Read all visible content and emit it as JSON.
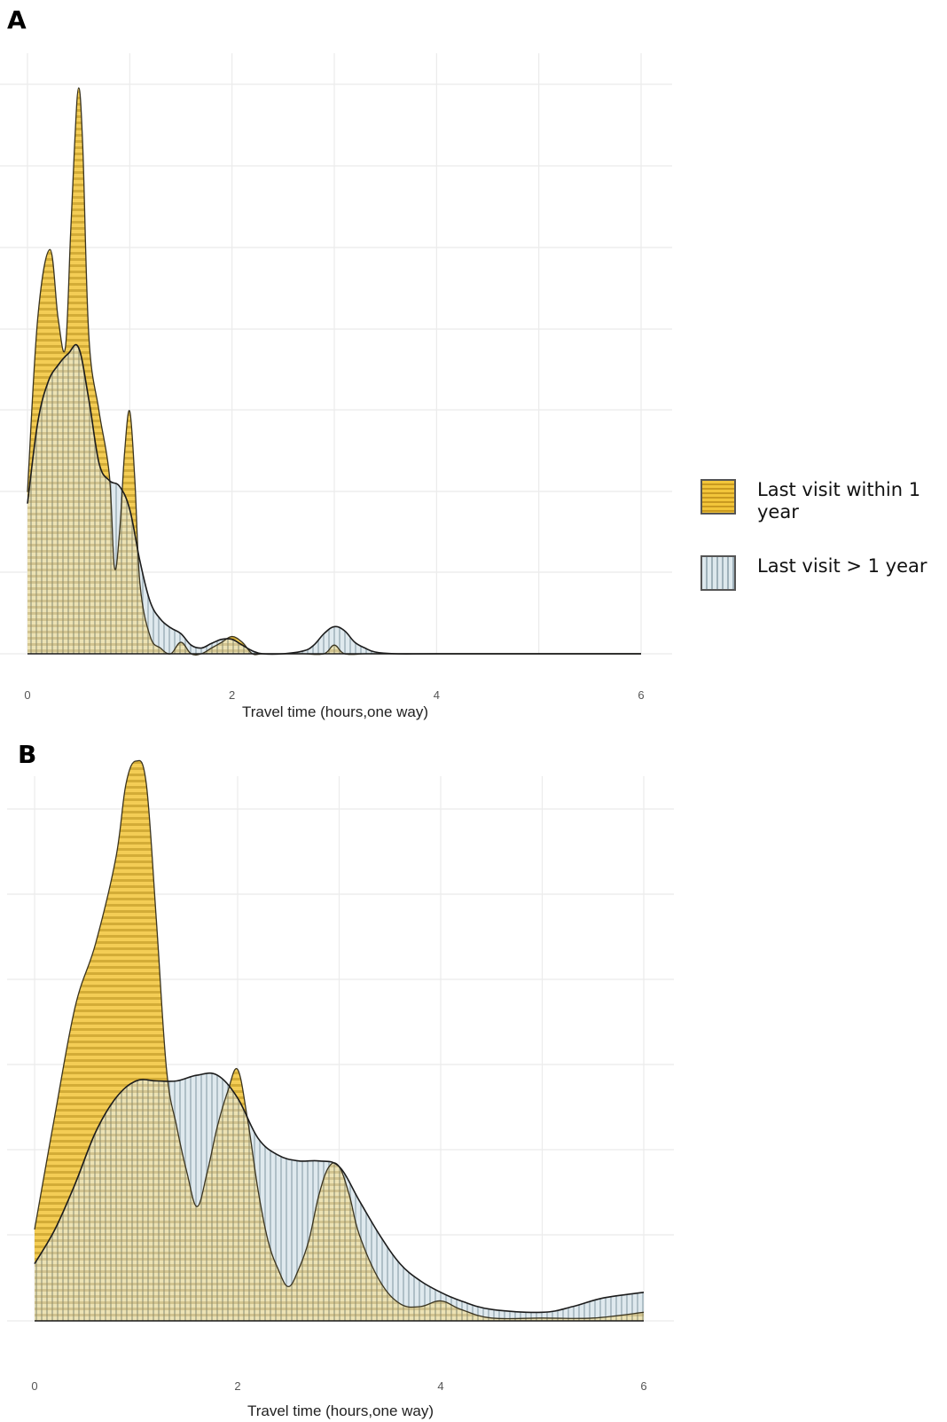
{
  "panels": [
    {
      "id": "A",
      "letter": "A"
    },
    {
      "id": "B",
      "letter": "B"
    }
  ],
  "legend": {
    "items": [
      {
        "label": "Last visit within 1 year",
        "color": "#f2c53a",
        "pattern": "horizontal-stripes"
      },
      {
        "label": "Last visit > 1 year",
        "color": "#dde8ed",
        "pattern": "vertical-stripes"
      }
    ]
  },
  "chart_data": [
    {
      "type": "area",
      "panel": "A",
      "xlabel": "Travel time (hours,one way)",
      "ylabel": "",
      "xlim": [
        0,
        6
      ],
      "ylim": [
        0,
        1
      ],
      "xticks": [
        "0",
        "2",
        "4",
        "6"
      ],
      "grid": true,
      "legend_position": "right",
      "series": [
        {
          "name": "Last visit within 1 year",
          "color": "#f2c53a",
          "x": [
            0,
            0.1,
            0.22,
            0.3,
            0.37,
            0.42,
            0.46,
            0.5,
            0.54,
            0.6,
            0.7,
            0.8,
            0.85,
            0.9,
            0.95,
            1.0,
            1.05,
            1.1,
            1.2,
            1.3,
            1.4,
            1.5,
            1.6,
            1.7,
            1.8,
            1.9,
            2.0,
            2.1,
            2.2,
            2.3,
            2.5,
            2.7,
            2.9,
            3.0,
            3.1,
            3.3,
            3.5,
            4.0,
            5.0,
            6.0
          ],
          "y": [
            0.28,
            0.58,
            0.7,
            0.58,
            0.53,
            0.72,
            0.88,
            0.98,
            0.88,
            0.55,
            0.42,
            0.31,
            0.15,
            0.21,
            0.35,
            0.42,
            0.3,
            0.12,
            0.03,
            0.01,
            0.0,
            0.02,
            0.0,
            0.0,
            0.01,
            0.02,
            0.03,
            0.02,
            0.0,
            0.0,
            0.0,
            0.0,
            0.0,
            0.015,
            0.0,
            0.0,
            0.0,
            0.0,
            0.0,
            0.0
          ]
        },
        {
          "name": "Last visit > 1 year",
          "color": "#dde8ed",
          "x": [
            0,
            0.1,
            0.2,
            0.3,
            0.4,
            0.5,
            0.6,
            0.7,
            0.8,
            0.9,
            1.0,
            1.1,
            1.2,
            1.3,
            1.4,
            1.5,
            1.6,
            1.7,
            1.8,
            1.9,
            2.0,
            2.1,
            2.2,
            2.3,
            2.5,
            2.7,
            2.8,
            2.9,
            3.0,
            3.1,
            3.2,
            3.3,
            3.4,
            3.6,
            4.0,
            5.0,
            6.0
          ],
          "y": [
            0.26,
            0.4,
            0.47,
            0.5,
            0.52,
            0.53,
            0.44,
            0.33,
            0.3,
            0.29,
            0.25,
            0.16,
            0.09,
            0.06,
            0.045,
            0.035,
            0.015,
            0.01,
            0.018,
            0.025,
            0.025,
            0.015,
            0.005,
            0.0,
            0.0,
            0.005,
            0.015,
            0.035,
            0.047,
            0.04,
            0.02,
            0.01,
            0.003,
            0.0,
            0.0,
            0.0,
            0.0
          ]
        }
      ]
    },
    {
      "type": "area",
      "panel": "B",
      "xlabel": "Travel time (hours,one way)",
      "ylabel": "",
      "xlim": [
        0,
        6
      ],
      "ylim": [
        0,
        1
      ],
      "xticks": [
        "0",
        "2",
        "4",
        "6"
      ],
      "grid": true,
      "series": [
        {
          "name": "Last visit within 1 year",
          "color": "#f2c53a",
          "x": [
            0,
            0.2,
            0.4,
            0.6,
            0.8,
            0.9,
            1.0,
            1.1,
            1.2,
            1.3,
            1.4,
            1.5,
            1.6,
            1.7,
            1.8,
            1.9,
            2.0,
            2.1,
            2.2,
            2.3,
            2.4,
            2.5,
            2.6,
            2.7,
            2.8,
            2.9,
            3.0,
            3.1,
            3.2,
            3.4,
            3.6,
            3.8,
            4.0,
            4.2,
            4.5,
            5.0,
            5.5,
            6.0
          ],
          "y": [
            0.16,
            0.36,
            0.55,
            0.66,
            0.81,
            0.94,
            0.98,
            0.94,
            0.7,
            0.44,
            0.34,
            0.26,
            0.2,
            0.26,
            0.34,
            0.4,
            0.44,
            0.35,
            0.23,
            0.14,
            0.09,
            0.06,
            0.09,
            0.14,
            0.22,
            0.27,
            0.27,
            0.22,
            0.15,
            0.07,
            0.03,
            0.025,
            0.035,
            0.02,
            0.005,
            0.005,
            0.005,
            0.015
          ]
        },
        {
          "name": "Last visit > 1 year",
          "color": "#dde8ed",
          "x": [
            0,
            0.2,
            0.4,
            0.6,
            0.8,
            1.0,
            1.2,
            1.4,
            1.6,
            1.8,
            2.0,
            2.2,
            2.4,
            2.6,
            2.8,
            3.0,
            3.2,
            3.4,
            3.6,
            3.8,
            4.0,
            4.2,
            4.5,
            5.0,
            5.3,
            5.6,
            6.0
          ],
          "y": [
            0.1,
            0.16,
            0.24,
            0.33,
            0.39,
            0.42,
            0.42,
            0.42,
            0.43,
            0.43,
            0.39,
            0.32,
            0.29,
            0.28,
            0.28,
            0.27,
            0.21,
            0.15,
            0.1,
            0.07,
            0.05,
            0.035,
            0.02,
            0.015,
            0.025,
            0.04,
            0.05
          ]
        }
      ]
    }
  ]
}
